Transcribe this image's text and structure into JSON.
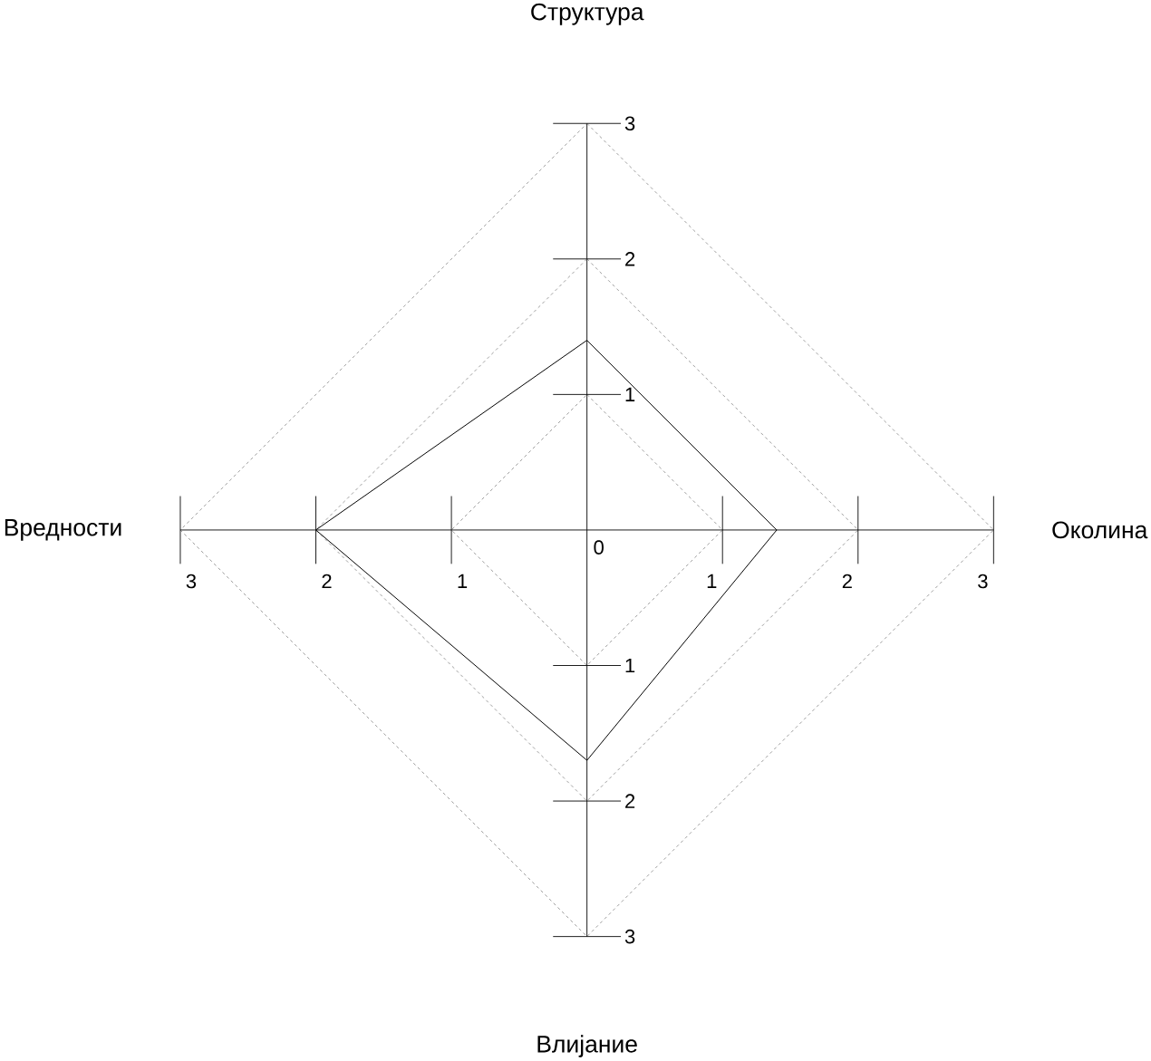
{
  "chart_data": {
    "type": "radar",
    "categories": [
      "Структура",
      "Околина",
      "Влијание",
      "Вредности"
    ],
    "series": [
      {
        "color": "#000000",
        "values": [
          1.4,
          1.4,
          1.7,
          2
        ]
      }
    ],
    "ylim": [
      0,
      3
    ],
    "yticks": [
      0,
      1,
      2,
      3,
      1,
      2,
      3,
      1,
      2,
      3,
      1,
      2,
      3
    ],
    "grid": true,
    "line_style": "solid"
  }
}
